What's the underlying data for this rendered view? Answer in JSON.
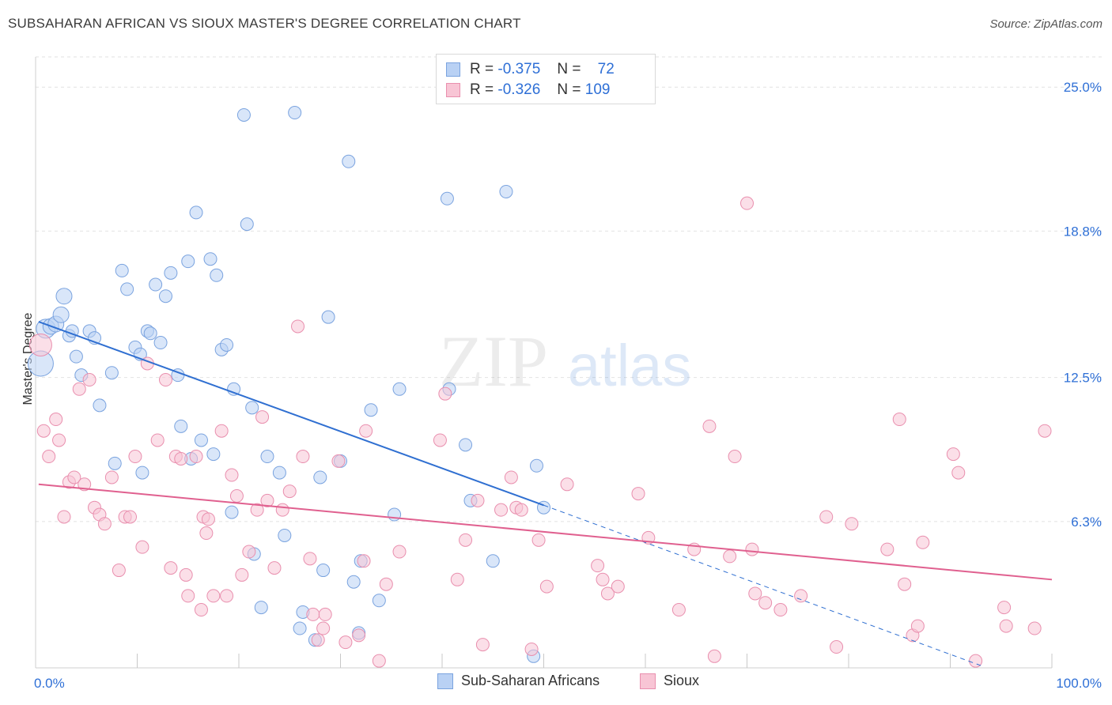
{
  "header": {
    "title": "SUBSAHARAN AFRICAN VS SIOUX MASTER'S DEGREE CORRELATION CHART",
    "source": "Source: ZipAtlas.com"
  },
  "watermark": {
    "zip": "ZIP",
    "atlas": "atlas"
  },
  "legend_stats": [
    {
      "r_label": "R =",
      "r_value": "-0.375",
      "n_label": "N =",
      "n_value": "72"
    },
    {
      "r_label": "R =",
      "r_value": "-0.326",
      "n_label": "N =",
      "n_value": "109"
    }
  ],
  "chart_data": {
    "type": "scatter",
    "title": "SUBSAHARAN AFRICAN VS SIOUX MASTER'S DEGREE CORRELATION CHART",
    "xlabel": "",
    "ylabel": "Master's Degree",
    "xlim": [
      0,
      100
    ],
    "ylim": [
      0,
      26.3
    ],
    "x_tick_labels": [
      "0.0%",
      "100.0%"
    ],
    "y_ticks": [
      6.3,
      12.5,
      18.8,
      25.0
    ],
    "y_tick_labels": [
      "6.3%",
      "12.5%",
      "18.8%",
      "25.0%"
    ],
    "grid": true,
    "legend_position": "bottom",
    "colors": {
      "Sub-Saharan Africans": {
        "fill": "#b9d1f4",
        "stroke": "#7aa3df",
        "line": "#2f6fd1"
      },
      "Sioux": {
        "fill": "#f8c5d5",
        "stroke": "#e98fae",
        "line": "#e0608f"
      }
    },
    "series": [
      {
        "name": "Sub-Saharan Africans",
        "r": -0.375,
        "n": 72,
        "trend": {
          "x0": 0.3,
          "y0": 14.9,
          "x1": 50,
          "y1": 7.0,
          "dash_to_x": 93,
          "dash_to_y": 0.1
        },
        "points": [
          [
            0.5,
            13.1,
            16
          ],
          [
            1,
            14.6,
            12
          ],
          [
            1.5,
            14.7,
            10
          ],
          [
            2,
            14.8,
            10
          ],
          [
            2.5,
            15.2,
            10
          ],
          [
            2.8,
            16.0,
            10
          ],
          [
            3.3,
            14.3,
            8
          ],
          [
            3.6,
            14.5,
            8
          ],
          [
            4,
            13.4,
            8
          ],
          [
            4.5,
            12.6,
            8
          ],
          [
            5.3,
            14.5,
            8
          ],
          [
            5.8,
            14.2,
            8
          ],
          [
            6.3,
            11.3,
            8
          ],
          [
            7.5,
            12.7,
            8
          ],
          [
            7.8,
            8.8,
            8
          ],
          [
            8.5,
            17.1,
            8
          ],
          [
            9,
            16.3,
            8
          ],
          [
            9.8,
            13.8,
            8
          ],
          [
            10.3,
            13.5,
            8
          ],
          [
            10.5,
            8.4,
            8
          ],
          [
            11,
            14.5,
            8
          ],
          [
            11.3,
            14.4,
            8
          ],
          [
            11.8,
            16.5,
            8
          ],
          [
            12.3,
            14.0,
            8
          ],
          [
            12.8,
            16.0,
            8
          ],
          [
            13.3,
            17.0,
            8
          ],
          [
            14.0,
            12.6,
            8
          ],
          [
            14.3,
            10.4,
            8
          ],
          [
            15,
            17.5,
            8
          ],
          [
            15.3,
            9.0,
            8
          ],
          [
            15.8,
            19.6,
            8
          ],
          [
            16.3,
            9.8,
            8
          ],
          [
            17.2,
            17.6,
            8
          ],
          [
            17.5,
            9.2,
            8
          ],
          [
            17.8,
            16.9,
            8
          ],
          [
            18.3,
            13.7,
            8
          ],
          [
            18.8,
            13.9,
            8
          ],
          [
            19.3,
            6.7,
            8
          ],
          [
            19.5,
            12.0,
            8
          ],
          [
            20.5,
            23.8,
            8
          ],
          [
            20.8,
            19.1,
            8
          ],
          [
            21.3,
            11.2,
            8
          ],
          [
            21.5,
            4.9,
            8
          ],
          [
            22.2,
            2.6,
            8
          ],
          [
            22.8,
            9.1,
            8
          ],
          [
            24,
            8.4,
            8
          ],
          [
            24.5,
            5.7,
            8
          ],
          [
            25.5,
            23.9,
            8
          ],
          [
            26,
            1.7,
            8
          ],
          [
            26.3,
            2.4,
            8
          ],
          [
            27.5,
            1.2,
            8
          ],
          [
            28,
            8.2,
            8
          ],
          [
            28.3,
            4.2,
            8
          ],
          [
            28.8,
            15.1,
            8
          ],
          [
            30,
            8.9,
            8
          ],
          [
            30.8,
            21.8,
            8
          ],
          [
            31.3,
            3.7,
            8
          ],
          [
            31.8,
            1.5,
            8
          ],
          [
            32,
            4.6,
            8
          ],
          [
            33.0,
            11.1,
            8
          ],
          [
            33.8,
            2.9,
            8
          ],
          [
            35.3,
            6.6,
            8
          ],
          [
            35.8,
            12.0,
            8
          ],
          [
            40.5,
            20.2,
            8
          ],
          [
            40.7,
            12.0,
            8
          ],
          [
            42.3,
            9.6,
            8
          ],
          [
            42.8,
            7.2,
            8
          ],
          [
            45,
            4.6,
            8
          ],
          [
            46.3,
            20.5,
            8
          ],
          [
            49,
            0.5,
            8
          ],
          [
            49.3,
            8.7,
            8
          ],
          [
            50,
            6.9,
            8
          ]
        ]
      },
      {
        "name": "Sioux",
        "r": -0.326,
        "n": 109,
        "trend": {
          "x0": 0.3,
          "y0": 7.9,
          "x1": 100,
          "y1": 3.8
        },
        "points": [
          [
            0.5,
            13.9,
            14
          ],
          [
            0.8,
            10.2,
            8
          ],
          [
            1.3,
            9.1,
            8
          ],
          [
            2,
            10.7,
            8
          ],
          [
            2.3,
            9.8,
            8
          ],
          [
            2.8,
            6.5,
            8
          ],
          [
            3.3,
            8.0,
            8
          ],
          [
            3.8,
            8.2,
            8
          ],
          [
            4.3,
            12.0,
            8
          ],
          [
            4.8,
            7.9,
            8
          ],
          [
            5.3,
            12.4,
            8
          ],
          [
            5.8,
            6.9,
            8
          ],
          [
            6.3,
            6.6,
            8
          ],
          [
            6.8,
            6.2,
            8
          ],
          [
            7.5,
            8.2,
            8
          ],
          [
            8.2,
            4.2,
            8
          ],
          [
            8.8,
            6.5,
            8
          ],
          [
            9.3,
            6.5,
            8
          ],
          [
            9.8,
            9.1,
            8
          ],
          [
            10.5,
            5.2,
            8
          ],
          [
            11,
            13.1,
            8
          ],
          [
            12,
            9.8,
            8
          ],
          [
            12.8,
            12.4,
            8
          ],
          [
            13.3,
            4.3,
            8
          ],
          [
            13.8,
            9.1,
            8
          ],
          [
            14.3,
            9.0,
            8
          ],
          [
            14.8,
            4.0,
            8
          ],
          [
            15,
            3.1,
            8
          ],
          [
            15.8,
            9.1,
            8
          ],
          [
            16.3,
            2.5,
            8
          ],
          [
            16.5,
            6.5,
            8
          ],
          [
            16.8,
            5.8,
            8
          ],
          [
            17,
            6.4,
            8
          ],
          [
            17.5,
            3.1,
            8
          ],
          [
            18.3,
            10.2,
            8
          ],
          [
            18.8,
            3.1,
            8
          ],
          [
            19.3,
            8.3,
            8
          ],
          [
            19.8,
            7.4,
            8
          ],
          [
            20.3,
            4.0,
            8
          ],
          [
            21,
            5.0,
            8
          ],
          [
            21.8,
            6.8,
            8
          ],
          [
            22.3,
            10.8,
            8
          ],
          [
            22.8,
            7.2,
            8
          ],
          [
            23.5,
            4.3,
            8
          ],
          [
            24.3,
            6.8,
            8
          ],
          [
            25,
            7.6,
            8
          ],
          [
            25.8,
            14.7,
            8
          ],
          [
            26.3,
            9.1,
            8
          ],
          [
            27.0,
            4.7,
            8
          ],
          [
            27.3,
            2.3,
            8
          ],
          [
            27.8,
            1.2,
            8
          ],
          [
            28.3,
            1.7,
            8
          ],
          [
            29.8,
            8.9,
            8
          ],
          [
            30.5,
            1.1,
            8
          ],
          [
            31.8,
            1.4,
            8
          ],
          [
            32.3,
            4.6,
            8
          ],
          [
            32.5,
            10.2,
            8
          ],
          [
            33.8,
            0.3,
            8
          ],
          [
            34.5,
            3.6,
            8
          ],
          [
            35.8,
            5.0,
            8
          ],
          [
            39.8,
            9.8,
            8
          ],
          [
            40.3,
            11.8,
            8
          ],
          [
            41.5,
            3.8,
            8
          ],
          [
            42.3,
            5.5,
            8
          ],
          [
            43.5,
            7.2,
            8
          ],
          [
            44,
            1.0,
            8
          ],
          [
            45.8,
            6.8,
            8
          ],
          [
            46.8,
            8.2,
            8
          ],
          [
            47.3,
            6.9,
            8
          ],
          [
            47.8,
            6.8,
            8
          ],
          [
            48.8,
            0.8,
            8
          ],
          [
            49.5,
            5.5,
            8
          ],
          [
            50.3,
            3.5,
            8
          ],
          [
            52.3,
            7.9,
            8
          ],
          [
            55.3,
            4.4,
            8
          ],
          [
            55.8,
            3.8,
            8
          ],
          [
            56.3,
            3.2,
            8
          ],
          [
            57.3,
            3.5,
            8
          ],
          [
            59.3,
            7.5,
            8
          ],
          [
            60.3,
            5.6,
            8
          ],
          [
            63.3,
            2.5,
            8
          ],
          [
            64.8,
            5.1,
            8
          ],
          [
            66.3,
            10.4,
            8
          ],
          [
            66.8,
            0.5,
            8
          ],
          [
            68.3,
            4.8,
            8
          ],
          [
            68.8,
            9.1,
            8
          ],
          [
            70,
            20.0,
            8
          ],
          [
            70.5,
            5.1,
            8
          ],
          [
            70.8,
            3.2,
            8
          ],
          [
            71.8,
            2.8,
            8
          ],
          [
            73.3,
            2.5,
            8
          ],
          [
            75.3,
            3.1,
            8
          ],
          [
            77.8,
            6.5,
            8
          ],
          [
            78.8,
            0.9,
            8
          ],
          [
            80.3,
            6.2,
            8
          ],
          [
            83.8,
            5.1,
            8
          ],
          [
            85,
            10.7,
            8
          ],
          [
            85.5,
            3.6,
            8
          ],
          [
            86.3,
            1.4,
            8
          ],
          [
            86.8,
            1.8,
            8
          ],
          [
            87.3,
            5.4,
            8
          ],
          [
            90.3,
            9.2,
            8
          ],
          [
            90.8,
            8.4,
            8
          ],
          [
            92.5,
            0.3,
            8
          ],
          [
            95.3,
            2.6,
            8
          ],
          [
            95.5,
            1.8,
            8
          ],
          [
            98.3,
            1.7,
            8
          ],
          [
            99.3,
            10.2,
            8
          ],
          [
            28.5,
            2.3,
            8
          ]
        ]
      }
    ]
  },
  "legend_bottom": [
    {
      "label": "Sub-Saharan Africans"
    },
    {
      "label": "Sioux"
    }
  ]
}
